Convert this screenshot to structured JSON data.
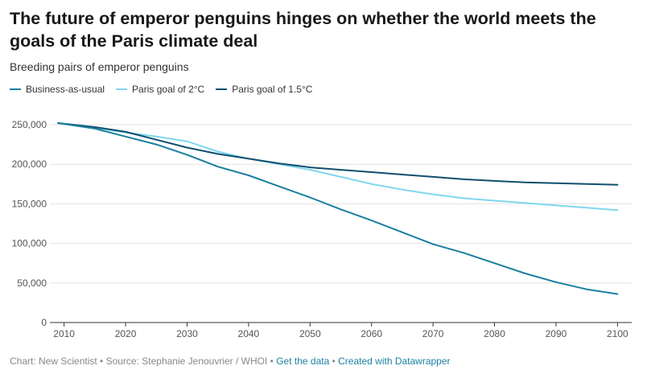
{
  "header": {
    "title": "The future of emperor penguins hinges on whether the world meets the goals of the Paris climate deal",
    "subtitle": "Breeding pairs of emperor penguins"
  },
  "footer": {
    "source": "Chart: New Scientist • Source: Stephanie Jenouvrier / WHOI • ",
    "get_data": "Get the data",
    "sep": " • ",
    "created_with": "Created with Datawrapper"
  },
  "colors": {
    "bau": "#1a7fa0",
    "two": "#7fd6ee",
    "onefive": "#0f4f6e",
    "grid": "#e3e3e3",
    "tick": "#555555"
  },
  "chart_data": {
    "type": "line",
    "title": "The future of emperor penguins hinges on whether the world meets the goals of the Paris climate deal",
    "subtitle": "Breeding pairs of emperor penguins",
    "xlim": [
      2009,
      2101
    ],
    "ylim": [
      0,
      250000
    ],
    "yticks": [
      0,
      50000,
      100000,
      150000,
      200000,
      250000
    ],
    "ytick_labels": [
      "0",
      "50,000",
      "100,000",
      "150,000",
      "200,000",
      "250,000"
    ],
    "xticks": [
      2010,
      2020,
      2030,
      2040,
      2050,
      2060,
      2070,
      2080,
      2090,
      2100
    ],
    "xtick_labels": [
      "2010",
      "2020",
      "2030",
      "2040",
      "2050",
      "2060",
      "2070",
      "2080",
      "2090",
      "2100"
    ],
    "grid": true,
    "legend_position": "top-left",
    "x": [
      2009,
      2015,
      2020,
      2025,
      2030,
      2035,
      2040,
      2045,
      2050,
      2055,
      2060,
      2065,
      2070,
      2075,
      2080,
      2085,
      2090,
      2095,
      2100
    ],
    "series": [
      {
        "name": "Business-as-usual",
        "color": "#1a7fa0",
        "values": [
          252000,
          245000,
          235000,
          225000,
          212000,
          197000,
          186000,
          172000,
          158000,
          143000,
          129000,
          114000,
          99000,
          88000,
          75000,
          62000,
          51000,
          42000,
          36000
        ]
      },
      {
        "name": "Paris goal of 2°C",
        "color": "#7fd6ee",
        "values": [
          252000,
          246000,
          240000,
          235000,
          229000,
          216000,
          207000,
          200000,
          193000,
          184000,
          175000,
          168000,
          162000,
          157000,
          154000,
          151000,
          148000,
          145000,
          142000
        ]
      },
      {
        "name": "Paris goal of 1.5°C",
        "color": "#0f4f6e",
        "values": [
          252000,
          247000,
          241000,
          231000,
          221000,
          213000,
          207000,
          201000,
          196000,
          193000,
          190000,
          187000,
          184000,
          181000,
          179000,
          177000,
          176000,
          175000,
          174000
        ]
      }
    ]
  }
}
